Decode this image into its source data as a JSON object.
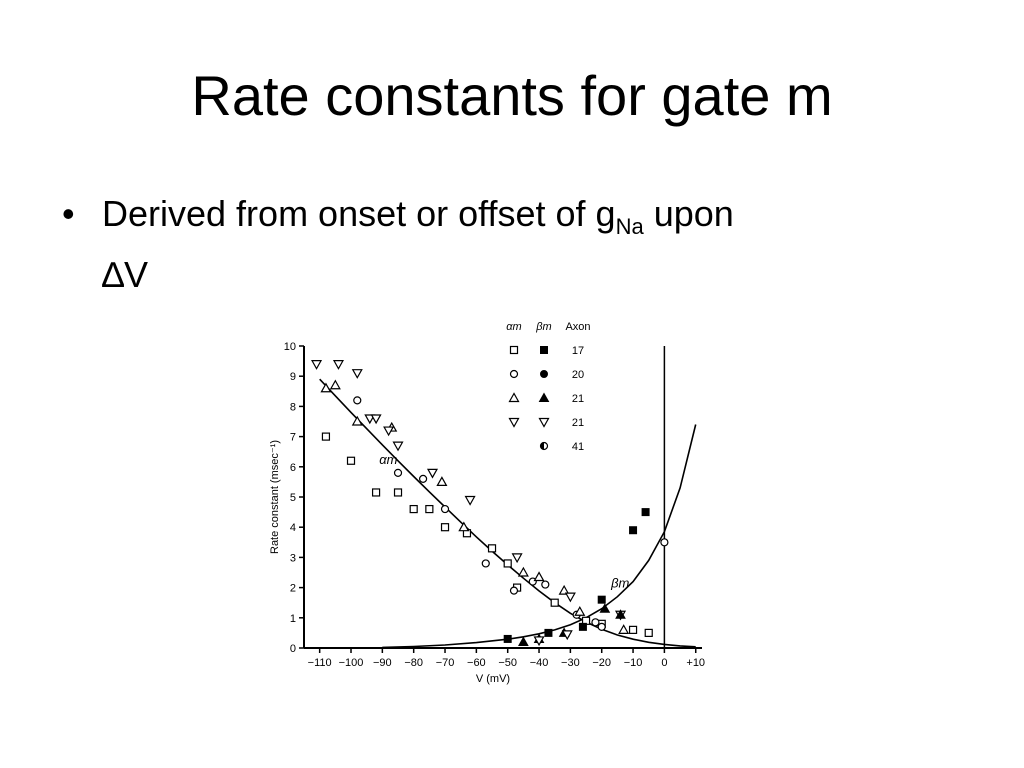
{
  "slide": {
    "title": "Rate constants for gate m",
    "bullet": {
      "marker": "•",
      "text_before": "Derived from onset or offset of g",
      "subscript": "Na",
      "text_after": " upon",
      "line2": "∆V"
    }
  },
  "chart_data": {
    "type": "scatter",
    "ylabel": "Rate constant (msec⁻¹)",
    "xlabel": "V (mV)",
    "xlim": [
      -115,
      12
    ],
    "ylim": [
      0,
      10
    ],
    "x_ticks": [
      -110,
      -100,
      -90,
      -80,
      -70,
      -60,
      -50,
      -40,
      -30,
      -20,
      -10,
      0,
      10
    ],
    "x_tick_labels": [
      "−110",
      "−100",
      "−90",
      "−80",
      "−70",
      "−60",
      "−50",
      "−40",
      "−30",
      "−20",
      "−10",
      "0",
      "+10"
    ],
    "y_ticks": [
      0,
      1,
      2,
      3,
      4,
      5,
      6,
      7,
      8,
      9,
      10
    ],
    "vertical_line_at": 0,
    "legend": {
      "headers": [
        "αm",
        "βm",
        "Axon"
      ],
      "rows": [
        {
          "alpha_marker": "open-square",
          "beta_marker": "filled-square",
          "axon": "17"
        },
        {
          "alpha_marker": "open-circle",
          "beta_marker": "filled-circle",
          "axon": "20"
        },
        {
          "alpha_marker": "open-triangle-up",
          "beta_marker": "filled-triangle-up",
          "axon": "21"
        },
        {
          "alpha_marker": "open-triangle-down",
          "beta_marker": "open-triangle-down",
          "axon": "21"
        },
        {
          "alpha_marker": "",
          "beta_marker": "half-circle",
          "axon": "41"
        }
      ]
    },
    "curve_labels": [
      {
        "text": "αm",
        "x": -91,
        "y": 6.1
      },
      {
        "text": "βm",
        "x": -17,
        "y": 2.0
      }
    ],
    "curves": [
      {
        "name": "αm",
        "x": [
          -110,
          -105,
          -100,
          -95,
          -90,
          -85,
          -80,
          -75,
          -70,
          -65,
          -60,
          -55,
          -50,
          -45,
          -40,
          -35,
          -30,
          -25,
          -20,
          -15,
          -10,
          -5,
          0,
          5,
          10
        ],
        "y": [
          8.9,
          8.35,
          7.8,
          7.26,
          6.73,
          6.2,
          5.68,
          5.17,
          4.67,
          4.17,
          3.68,
          3.21,
          2.75,
          2.31,
          1.89,
          1.5,
          1.15,
          0.86,
          0.62,
          0.43,
          0.29,
          0.19,
          0.12,
          0.07,
          0.04
        ]
      },
      {
        "name": "βm",
        "x": [
          -90,
          -80,
          -70,
          -60,
          -50,
          -45,
          -40,
          -35,
          -30,
          -25,
          -20,
          -15,
          -10,
          -5,
          0,
          5,
          10
        ],
        "y": [
          0.02,
          0.05,
          0.1,
          0.18,
          0.29,
          0.37,
          0.47,
          0.6,
          0.77,
          1.0,
          1.3,
          1.7,
          2.2,
          2.9,
          3.85,
          5.3,
          7.4
        ]
      }
    ],
    "series": [
      {
        "name": "αm axon 17",
        "marker": "open-square",
        "x": [
          -108,
          -100,
          -92,
          -85,
          -80,
          -75,
          -70,
          -63,
          -55,
          -50,
          -47,
          -35,
          -25,
          -20,
          -10,
          -5
        ],
        "y": [
          7.0,
          6.2,
          5.15,
          5.15,
          4.6,
          4.6,
          4.0,
          3.8,
          3.3,
          2.8,
          2.0,
          1.5,
          0.9,
          0.8,
          0.6,
          0.5
        ]
      },
      {
        "name": "αm axon 20",
        "marker": "open-circle",
        "x": [
          -98,
          -85,
          -77,
          -70,
          -57,
          -48,
          -42,
          -38,
          -28,
          -22,
          -20,
          0
        ],
        "y": [
          8.2,
          5.8,
          5.6,
          4.6,
          2.8,
          1.9,
          2.2,
          2.1,
          1.1,
          0.85,
          0.7,
          3.5
        ]
      },
      {
        "name": "αm axon 21",
        "marker": "open-triangle-up",
        "x": [
          -108,
          -105,
          -98,
          -87,
          -71,
          -64,
          -45,
          -40,
          -32,
          -27,
          -13
        ],
        "y": [
          8.6,
          8.7,
          7.5,
          7.3,
          5.5,
          4.0,
          2.5,
          2.35,
          1.9,
          1.2,
          0.6
        ]
      },
      {
        "name": "αm axon 21",
        "marker": "open-triangle-down",
        "x": [
          -111,
          -104,
          -98,
          -94,
          -92,
          -88,
          -85,
          -74,
          -62,
          -47,
          -30,
          -14
        ],
        "y": [
          9.4,
          9.4,
          9.1,
          7.6,
          7.6,
          7.2,
          6.7,
          5.8,
          4.9,
          3.0,
          1.7,
          1.1
        ]
      },
      {
        "name": "βm axon 17",
        "marker": "filled-square",
        "x": [
          -50,
          -37,
          -26,
          -20,
          -10,
          -6
        ],
        "y": [
          0.3,
          0.5,
          0.7,
          1.6,
          3.9,
          4.5
        ]
      },
      {
        "name": "βm axon 21",
        "marker": "filled-triangle-up",
        "x": [
          -45,
          -40,
          -32,
          -19,
          -14
        ],
        "y": [
          0.2,
          0.3,
          0.5,
          1.3,
          1.1
        ]
      },
      {
        "name": "βm axon 21",
        "marker": "open-triangle-down",
        "x": [
          -40,
          -31
        ],
        "y": [
          0.25,
          0.45
        ]
      }
    ]
  }
}
